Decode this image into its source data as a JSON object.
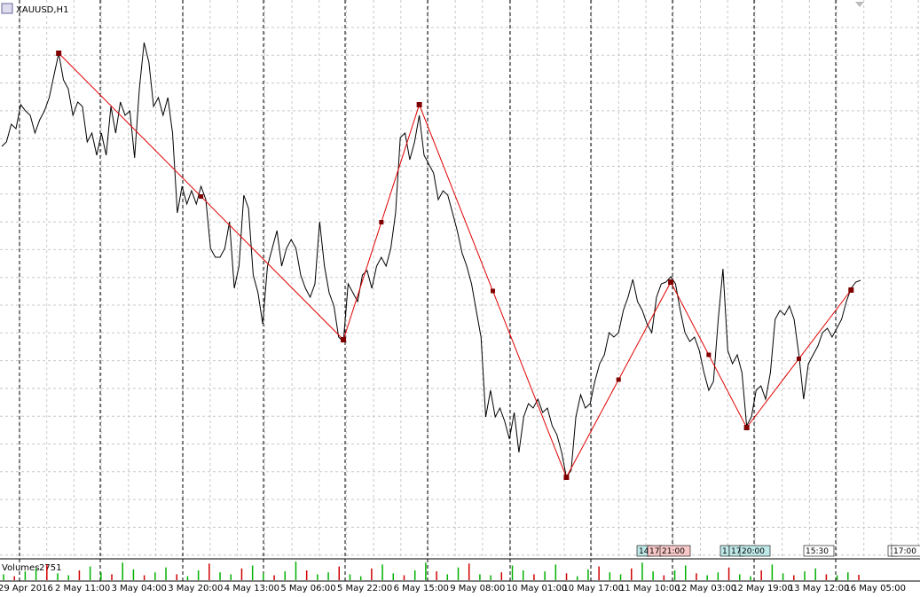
{
  "chart_data": {
    "type": "line",
    "title": "XAUUSD,H1",
    "ylim": [
      1257.2,
      1320
    ],
    "series": [
      {
        "color": "#000000",
        "values": [
          1303.5,
          1304,
          1306,
          1305.5,
          1308.2,
          1307.5,
          1307,
          1305,
          1306.5,
          1307.5,
          1309,
          1311.5,
          1314,
          1311,
          1310,
          1307,
          1308.5,
          1308,
          1304,
          1305,
          1302.5,
          1305,
          1302.5,
          1308,
          1305,
          1308.5,
          1307,
          1307.5,
          1302.2,
          1310,
          1315.2,
          1313,
          1308,
          1309,
          1307,
          1309,
          1305,
          1296,
          1299,
          1297,
          1298.5,
          1297,
          1299,
          1297.5,
          1292,
          1291,
          1291,
          1292,
          1295,
          1287.5,
          1290,
          1298,
          1296.5,
          1289,
          1287,
          1283.5,
          1290,
          1292,
          1294,
          1290,
          1292,
          1293,
          1292,
          1289,
          1287.5,
          1286.5,
          1288,
          1295,
          1290,
          1287,
          1285.5,
          1282,
          1281.5,
          1288,
          1287,
          1286,
          1289,
          1289.5,
          1287.5,
          1290,
          1291,
          1290,
          1292,
          1296,
          1304.5,
          1305,
          1302,
          1304,
          1307,
          1302.5,
          1301.5,
          1300.5,
          1297.5,
          1298.5,
          1298,
          1296,
          1294,
          1291.5,
          1290,
          1288,
          1285,
          1282,
          1273,
          1276,
          1273,
          1274,
          1272.5,
          1270.5,
          1273.5,
          1269,
          1273,
          1274.5,
          1274,
          1275,
          1273.5,
          1274,
          1272,
          1271,
          1269,
          1266.2,
          1267,
          1273,
          1275.5,
          1274,
          1274.5,
          1277,
          1279,
          1280,
          1282.5,
          1282,
          1282.5,
          1285,
          1286.5,
          1288.5,
          1286,
          1285,
          1283.5,
          1282.5,
          1286.5,
          1288,
          1288.2,
          1288.8,
          1288,
          1285,
          1282.5,
          1281.5,
          1282,
          1280.5,
          1278,
          1276,
          1277,
          1284,
          1289.7,
          1280.5,
          1279,
          1280,
          1278,
          1272,
          1273,
          1276,
          1276.5,
          1275,
          1278,
          1284,
          1285,
          1284.5,
          1285.5,
          1284,
          1280,
          1275,
          1279,
          1280,
          1281,
          1282.5,
          1283,
          1282,
          1283,
          1284,
          1286,
          1287.5,
          1288.2,
          1288.4
        ]
      },
      {
        "color": "#e00000",
        "x": [
          12,
          72,
          88,
          119,
          141,
          157,
          179
        ],
        "values": [
          1314,
          1281.7,
          1308.2,
          1266.2,
          1288.2,
          1271.8,
          1287.3
        ]
      }
    ],
    "volume": {
      "title": "Volumes",
      "color": "#00b000",
      "ylim": [
        0,
        10000
      ],
      "values": [
        3000,
        2000,
        4500,
        6000,
        8000,
        3500,
        2500,
        5000,
        7000,
        4000,
        3000,
        9000,
        5500,
        2500,
        4000,
        6500,
        3000,
        2000,
        5000,
        8500,
        4000,
        3000,
        6000,
        7500,
        3500,
        2500,
        4500,
        9500,
        5000,
        3000,
        4000,
        7000,
        3000,
        2000,
        6000,
        8000,
        3500,
        2500,
        5000,
        9000,
        4500,
        3000,
        6500,
        8500,
        3000,
        2500,
        4000,
        7500,
        5000,
        3000,
        4500,
        8000,
        3500,
        2000,
        5500,
        7000,
        4000,
        3000,
        6000,
        9000,
        4500,
        2500,
        5000,
        7500,
        3500,
        2500,
        4000,
        6500,
        3000,
        2000,
        5000,
        8000,
        3500,
        2500,
        4500,
        6000,
        3000,
        2500,
        4000,
        2751
      ]
    },
    "time_labels": [
      "29 Apr 2016",
      "2 May 11:00",
      "3 May 04:00",
      "3 May 20:00",
      "4 May 13:00",
      "5 May 06:00",
      "5 May 22:00",
      "6 May 15:00",
      "9 May 08:00",
      "10 May 01:00",
      "10 May 17:00",
      "11 May 10:00",
      "12 May 03:00",
      "12 May 19:00",
      "13 May 12:00",
      "16 May 05:00"
    ],
    "markers": [
      {
        "text": "14",
        "color": "#bfe8e8"
      },
      {
        "text": "17",
        "color": "#f8c8c8"
      },
      {
        "text": "21:00",
        "color": "#f8c8c8"
      },
      {
        "text": "1",
        "color": "#bfe8e8"
      },
      {
        "text": "17",
        "color": "#bfe8e8"
      },
      {
        "text": "20:00",
        "color": "#bfe8e8"
      },
      {
        "text": "15:30",
        "color": "#ffffff"
      },
      {
        "text": "1",
        "color": "#ffffff"
      },
      {
        "text": "17:00",
        "color": "#ffffff"
      }
    ]
  }
}
